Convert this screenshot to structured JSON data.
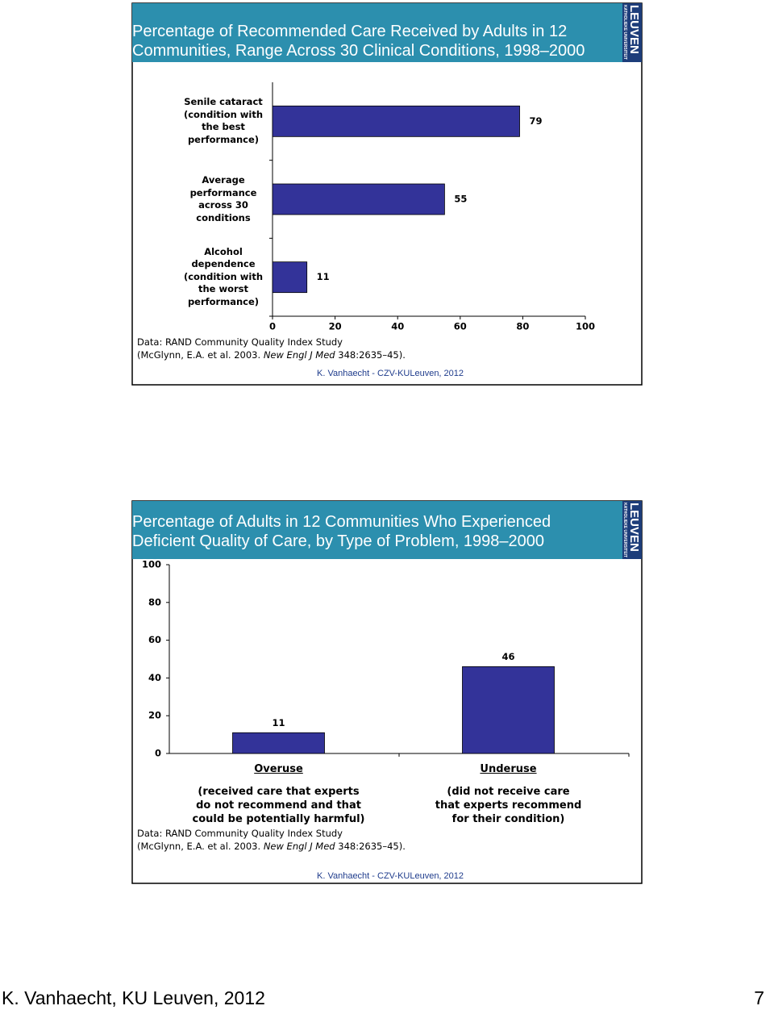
{
  "chart_data": [
    {
      "type": "hbar",
      "title": "Percentage of Recommended Care Received by Adults in 12\nCommunities, Range Across 30 Clinical Conditions, 1998–2000",
      "categories": [
        "Senile cataract\n(condition with\nthe best\nperformance)",
        "Average\nperformance\nacross 30\nconditions",
        "Alcohol\ndependence\n(condition with\nthe worst\nperformance)"
      ],
      "values": [
        79,
        55,
        11
      ],
      "color": "#333399",
      "xlim": [
        0,
        100
      ],
      "xticks": [
        0,
        20,
        40,
        60,
        80,
        100
      ],
      "source": [
        "Data: RAND Community Quality Index Study",
        "(McGlynn, E.A. et al. 2003. ",
        "New Engl J Med",
        " 348:2635–45)."
      ],
      "credit": "K. Vanhaecht - CZV-KULeuven, 2012"
    },
    {
      "type": "bar",
      "title": "Percentage of Adults in 12 Communities Who Experienced\nDeficient Quality of Care, by Type of Problem, 1998–2000",
      "categories": [
        "Overuse",
        "Underuse"
      ],
      "descriptions": [
        "(received care that experts\ndo not recommend and that\ncould be potentially harmful)",
        "(did not receive care\nthat experts recommend\nfor their condition)"
      ],
      "values": [
        11,
        46
      ],
      "color": "#333399",
      "ylim": [
        0,
        100
      ],
      "yticks": [
        0,
        20,
        40,
        60,
        80,
        100
      ],
      "source": [
        "Data: RAND Community Quality Index Study",
        "(McGlynn, E.A. et al. 2003. ",
        "New Engl J Med",
        " 348:2635–45)."
      ],
      "credit": "K. Vanhaecht - CZV-KULeuven, 2012"
    }
  ],
  "logo": {
    "name": "LEUVEN",
    "subtitle": "KATHOLIEKE UNIVERSITEIT"
  },
  "footer": {
    "left": "K. Vanhaecht, KU Leuven, 2012",
    "page": "7"
  }
}
